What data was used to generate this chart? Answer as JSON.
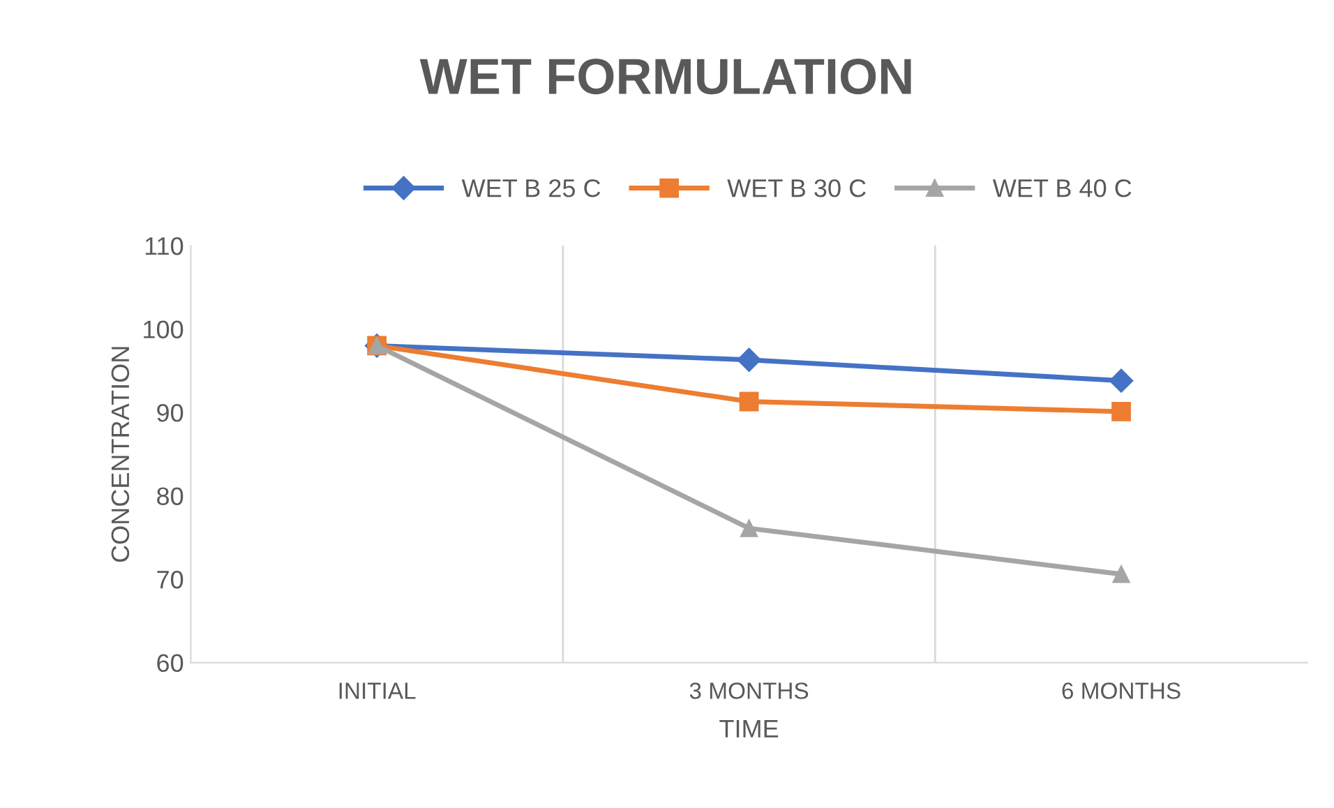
{
  "chart_data": {
    "type": "line",
    "title": "WET FORMULATION",
    "xlabel": "TIME",
    "ylabel": "CONCENTRATION",
    "categories": [
      "INITIAL",
      "3 MONTHS",
      "6 MONTHS"
    ],
    "series": [
      {
        "name": "WET B 25 C",
        "color": "#4472c4",
        "values": [
          98,
          96.3,
          93.8
        ],
        "marker": "diamond"
      },
      {
        "name": "WET B 30 C",
        "color": "#ed7d31",
        "values": [
          98,
          91.3,
          90.1
        ],
        "marker": "square"
      },
      {
        "name": "WET B 40 C",
        "color": "#a5a5a5",
        "values": [
          98,
          76.1,
          70.6
        ],
        "marker": "triangle"
      }
    ],
    "ylim": [
      60,
      110
    ],
    "yticks": [
      60,
      70,
      80,
      90,
      100,
      110
    ],
    "grid": "x",
    "legend": "top",
    "line_style": "solid"
  }
}
